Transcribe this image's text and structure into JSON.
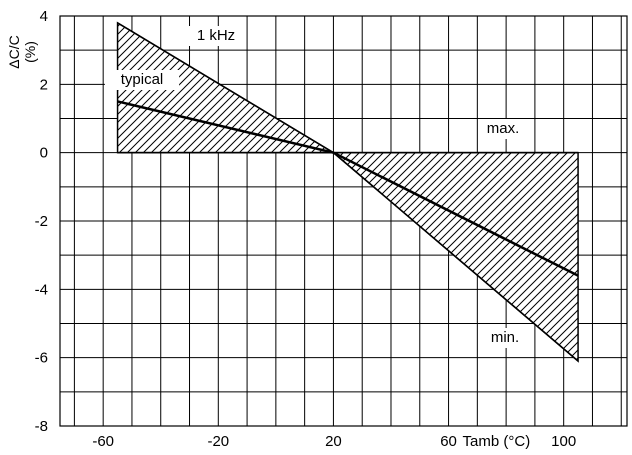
{
  "chart_data": {
    "type": "line",
    "xlabel": "Tamb (°C)",
    "ylabel": "ΔC/C",
    "ylabel_unit": "(%)",
    "xlim": [
      -75,
      122
    ],
    "ylim": [
      -8,
      4
    ],
    "x_ticks": [
      {
        "value": -60,
        "label": "-60"
      },
      {
        "value": -20,
        "label": "-20"
      },
      {
        "value": 20,
        "label": "20"
      },
      {
        "value": 60,
        "label": "60"
      },
      {
        "value": 100,
        "label": "100"
      }
    ],
    "y_ticks": [
      {
        "value": 4,
        "label": "4"
      },
      {
        "value": 2,
        "label": "2"
      },
      {
        "value": 0,
        "label": "0"
      },
      {
        "value": -2,
        "label": "-2"
      },
      {
        "value": -4,
        "label": "-4"
      },
      {
        "value": -6,
        "label": "-6"
      },
      {
        "value": -8,
        "label": "-8"
      }
    ],
    "grid": true,
    "series": [
      {
        "name": "typical",
        "x": [
          -55,
          20,
          105
        ],
        "y": [
          1.5,
          0,
          -3.6
        ]
      },
      {
        "name": "max.",
        "x": [
          -55,
          20,
          105
        ],
        "y": [
          3.8,
          0,
          0
        ]
      },
      {
        "name": "min.",
        "x": [
          -55,
          20,
          105
        ],
        "y": [
          0,
          0,
          -6.1
        ]
      }
    ],
    "annotations": [
      {
        "text": "1 kHz"
      },
      {
        "text": "typical"
      },
      {
        "text": "max."
      },
      {
        "text": "min."
      }
    ]
  }
}
